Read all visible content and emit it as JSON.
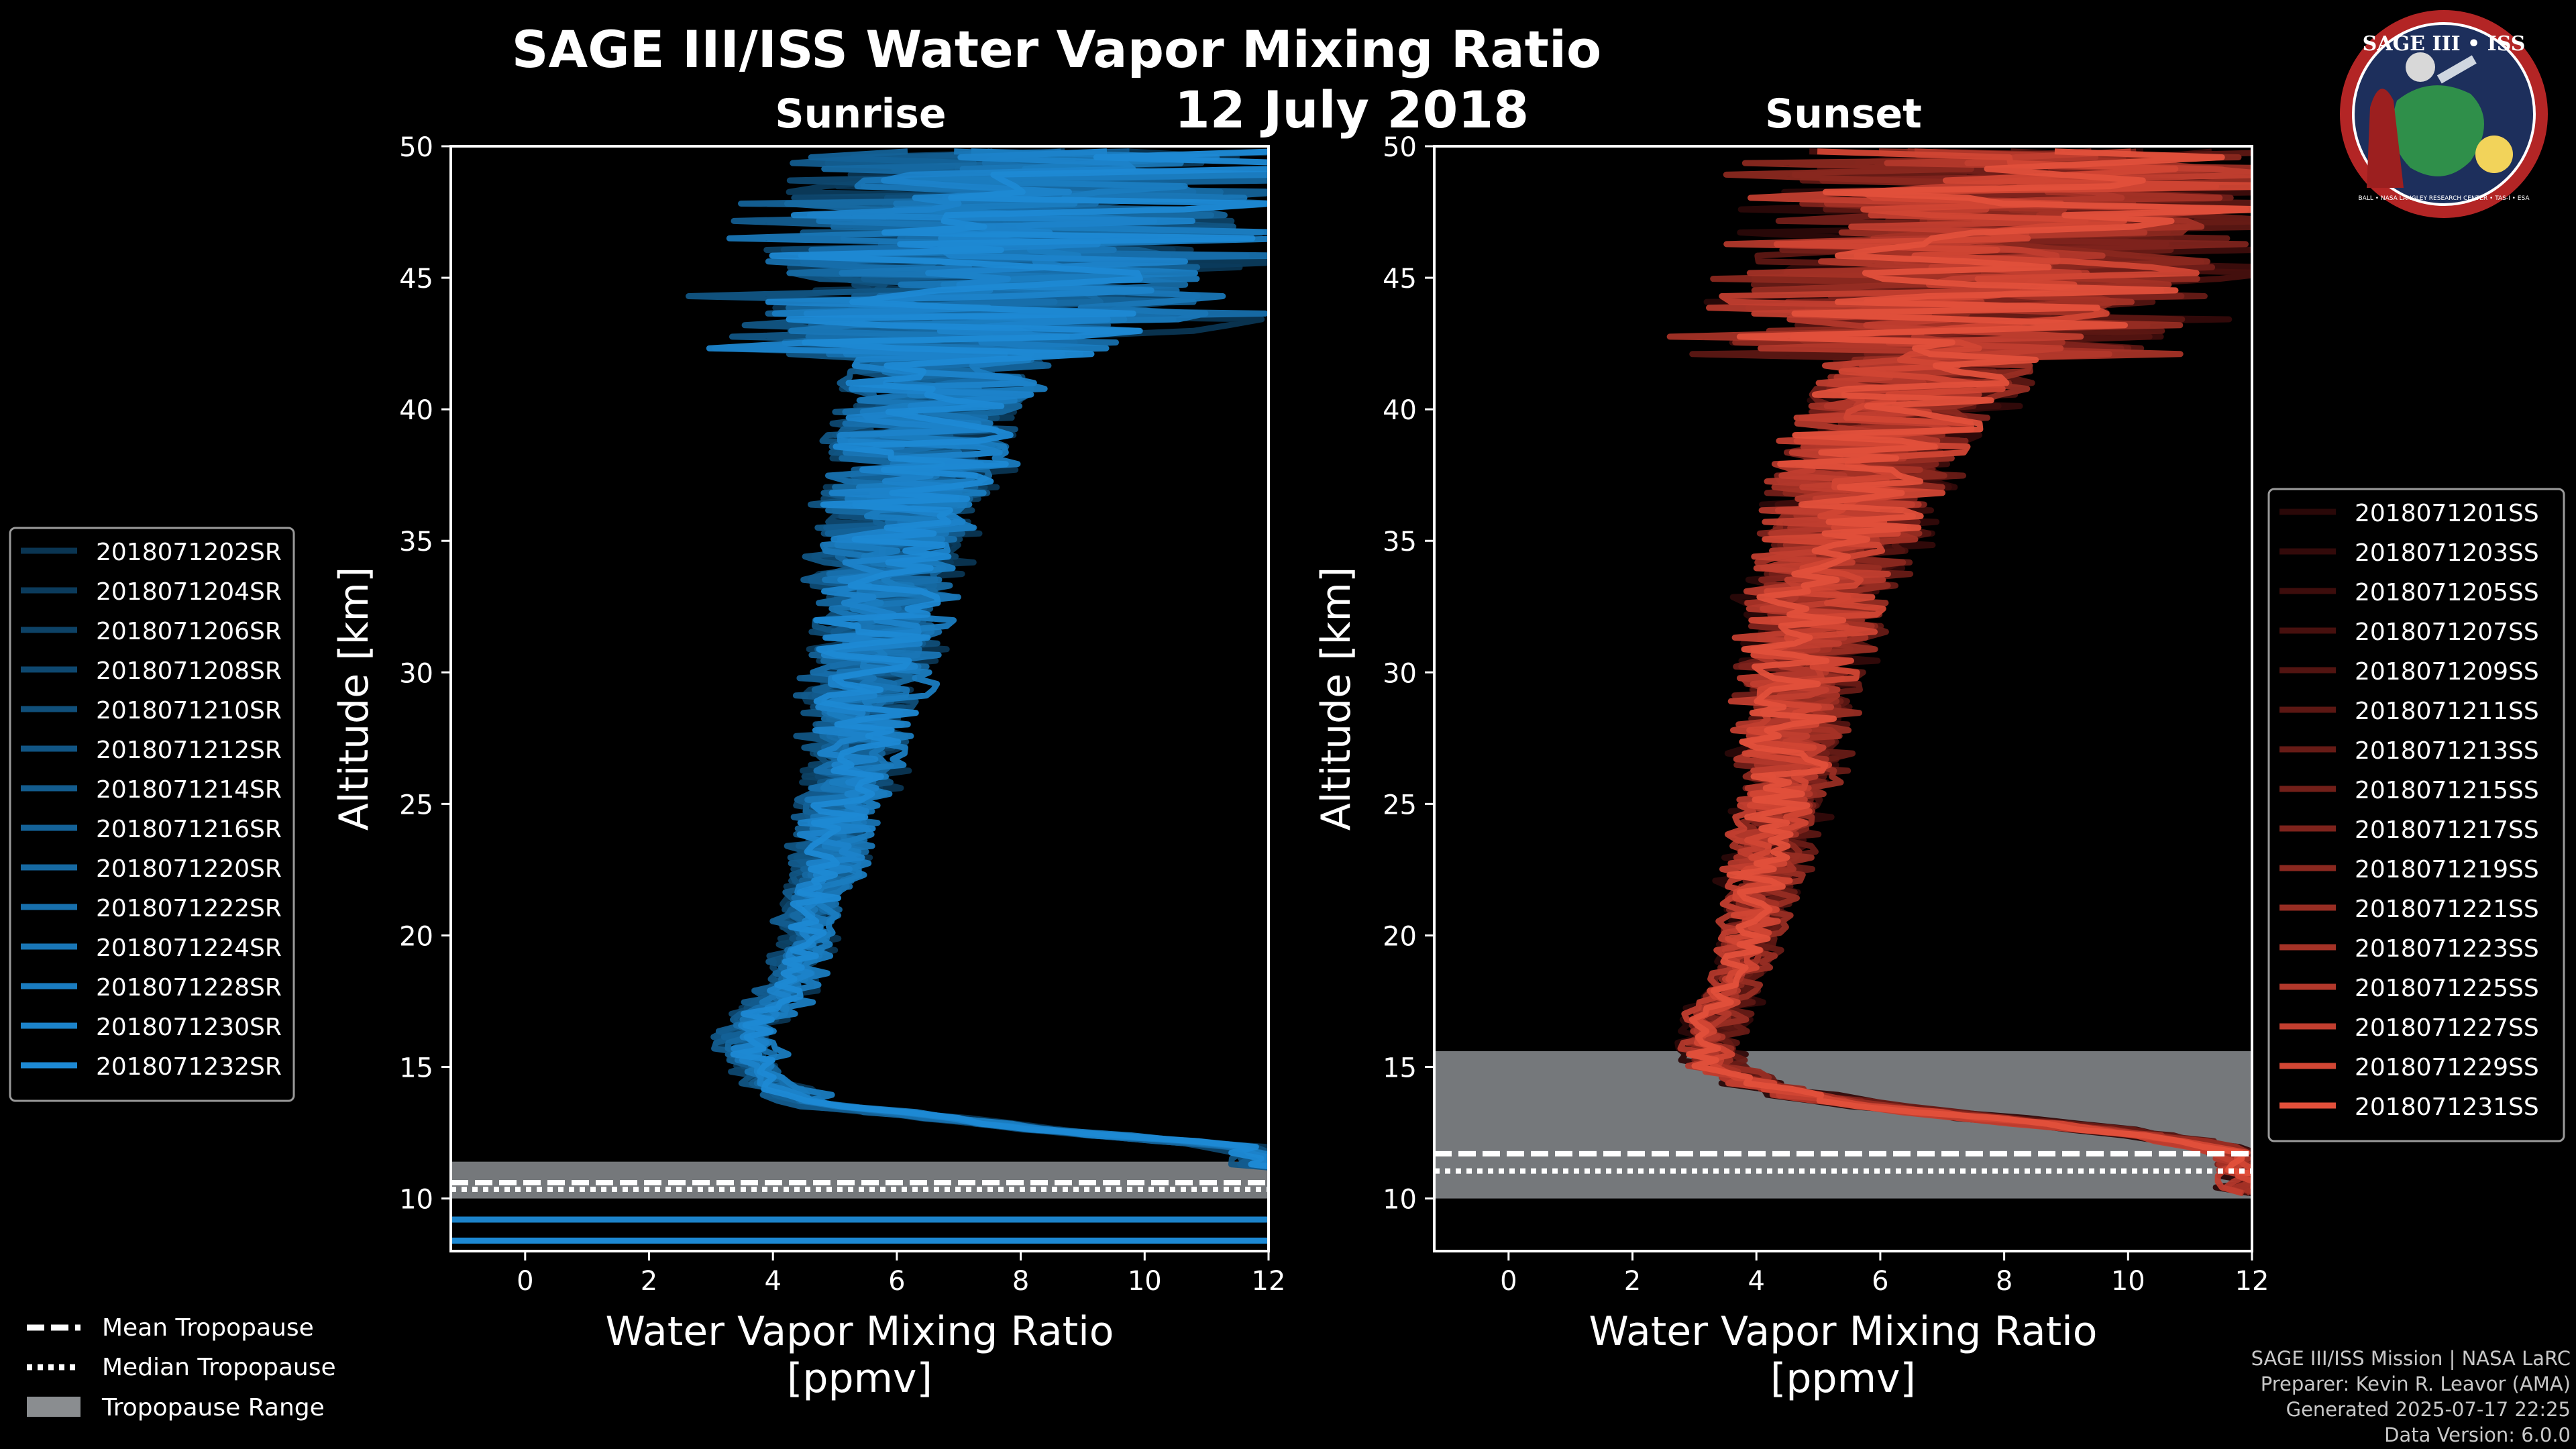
{
  "title": "SAGE III/ISS Water Vapor Mixing Ratio",
  "date": "12 July 2018",
  "logo": {
    "text_top": "SAGE III • ISS",
    "text_ring": "BALL • NASA LANGLEY RESEARCH CENTER • TAS-I • ESA"
  },
  "credits": {
    "line1": "SAGE III/ISS Mission | NASA LaRC",
    "line2": "Preparer: Kevin R. Leavor (AMA)",
    "line3": "Generated 2025-07-17 22:25",
    "line4": "Data Version: 6.0.0"
  },
  "bottom_legend": {
    "mean": "Mean Tropopause",
    "median": "Median Tropopause",
    "range": "Tropopause Range"
  },
  "colors": {
    "sunrise": "#1a90d8",
    "sunset": "#e8533f",
    "tropopause_range": "#8a8d90",
    "background": "#000000"
  },
  "chart_data": [
    {
      "type": "line",
      "subtitle": "Sunrise",
      "xlabel": "Water Vapor Mixing Ratio\n[ppmv]",
      "ylabel": "Altitude [km]",
      "xlim": [
        -1.2,
        12
      ],
      "ylim": [
        8,
        50
      ],
      "xticks": [
        0,
        2,
        4,
        6,
        8,
        10,
        12
      ],
      "yticks": [
        10,
        15,
        20,
        25,
        30,
        35,
        40,
        45,
        50
      ],
      "tropopause": {
        "mean": 10.6,
        "median": 10.6,
        "range": [
          10.0,
          11.4
        ]
      },
      "series": [
        {
          "name": "2018071202SR"
        },
        {
          "name": "2018071204SR"
        },
        {
          "name": "2018071206SR"
        },
        {
          "name": "2018071208SR"
        },
        {
          "name": "2018071210SR"
        },
        {
          "name": "2018071212SR"
        },
        {
          "name": "2018071214SR"
        },
        {
          "name": "2018071216SR"
        },
        {
          "name": "2018071220SR"
        },
        {
          "name": "2018071222SR"
        },
        {
          "name": "2018071224SR"
        },
        {
          "name": "2018071228SR"
        },
        {
          "name": "2018071230SR"
        },
        {
          "name": "2018071232SR"
        }
      ],
      "mean_profile": {
        "altitude": [
          8,
          9,
          10,
          10.8,
          11.5,
          12,
          12.5,
          13,
          13.5,
          14,
          15,
          16,
          17,
          18,
          19,
          20,
          22,
          24,
          26,
          28,
          30,
          32,
          34,
          36,
          38,
          40,
          42,
          44,
          46,
          48,
          50
        ],
        "value": [
          12,
          12,
          12,
          12,
          12,
          11.5,
          9,
          7,
          5,
          4.3,
          3.8,
          3.6,
          3.9,
          4.3,
          4.5,
          4.6,
          4.9,
          5.1,
          5.3,
          5.5,
          5.6,
          5.8,
          6.0,
          6.1,
          6.4,
          6.7,
          7.1,
          7.5,
          7.9,
          8.3,
          8.6
        ]
      },
      "colors": [
        "#0a3552",
        "#0b3b5c",
        "#0d4266",
        "#0e4870",
        "#104f7a",
        "#115584",
        "#135c8e",
        "#146298",
        "#1669a2",
        "#176fac",
        "#1976b6",
        "#1a7cc0",
        "#1c83ca",
        "#1d89d4"
      ]
    },
    {
      "type": "line",
      "subtitle": "Sunset",
      "xlabel": "Water Vapor Mixing Ratio\n[ppmv]",
      "ylabel": "Altitude [km]",
      "xlim": [
        -1.2,
        12
      ],
      "ylim": [
        8,
        50
      ],
      "xticks": [
        0,
        2,
        4,
        6,
        8,
        10,
        12
      ],
      "yticks": [
        10,
        15,
        20,
        25,
        30,
        35,
        40,
        45,
        50
      ],
      "tropopause": {
        "mean": 11.7,
        "median": 11.3,
        "range": [
          10.0,
          15.6
        ]
      },
      "series": [
        {
          "name": "2018071201SS"
        },
        {
          "name": "2018071203SS"
        },
        {
          "name": "2018071205SS"
        },
        {
          "name": "2018071207SS"
        },
        {
          "name": "2018071209SS"
        },
        {
          "name": "2018071211SS"
        },
        {
          "name": "2018071213SS"
        },
        {
          "name": "2018071215SS"
        },
        {
          "name": "2018071217SS"
        },
        {
          "name": "2018071219SS"
        },
        {
          "name": "2018071221SS"
        },
        {
          "name": "2018071223SS"
        },
        {
          "name": "2018071225SS"
        },
        {
          "name": "2018071227SS"
        },
        {
          "name": "2018071229SS"
        },
        {
          "name": "2018071231SS"
        }
      ],
      "mean_profile": {
        "altitude": [
          10,
          11,
          12,
          12.5,
          13,
          13.5,
          14,
          14.5,
          15,
          16,
          17,
          18,
          19,
          20,
          22,
          24,
          26,
          28,
          30,
          32,
          34,
          36,
          38,
          40,
          42,
          44,
          46,
          48,
          50
        ],
        "value": [
          12,
          12,
          11.5,
          10,
          8,
          6,
          4.6,
          3.9,
          3.4,
          3.2,
          3.4,
          3.6,
          3.8,
          3.9,
          4.1,
          4.3,
          4.5,
          4.6,
          4.7,
          4.9,
          5.2,
          5.5,
          5.8,
          6.4,
          7.0,
          7.5,
          8.0,
          8.4,
          8.7
        ]
      },
      "colors": [
        "#2a0808",
        "#330a0a",
        "#3d0d0c",
        "#47100e",
        "#521411",
        "#5c1713",
        "#671b16",
        "#721f19",
        "#7e231c",
        "#8a281f",
        "#972d23",
        "#a43226",
        "#b2382b",
        "#c13e2f",
        "#d14634",
        "#e2503b"
      ]
    }
  ]
}
